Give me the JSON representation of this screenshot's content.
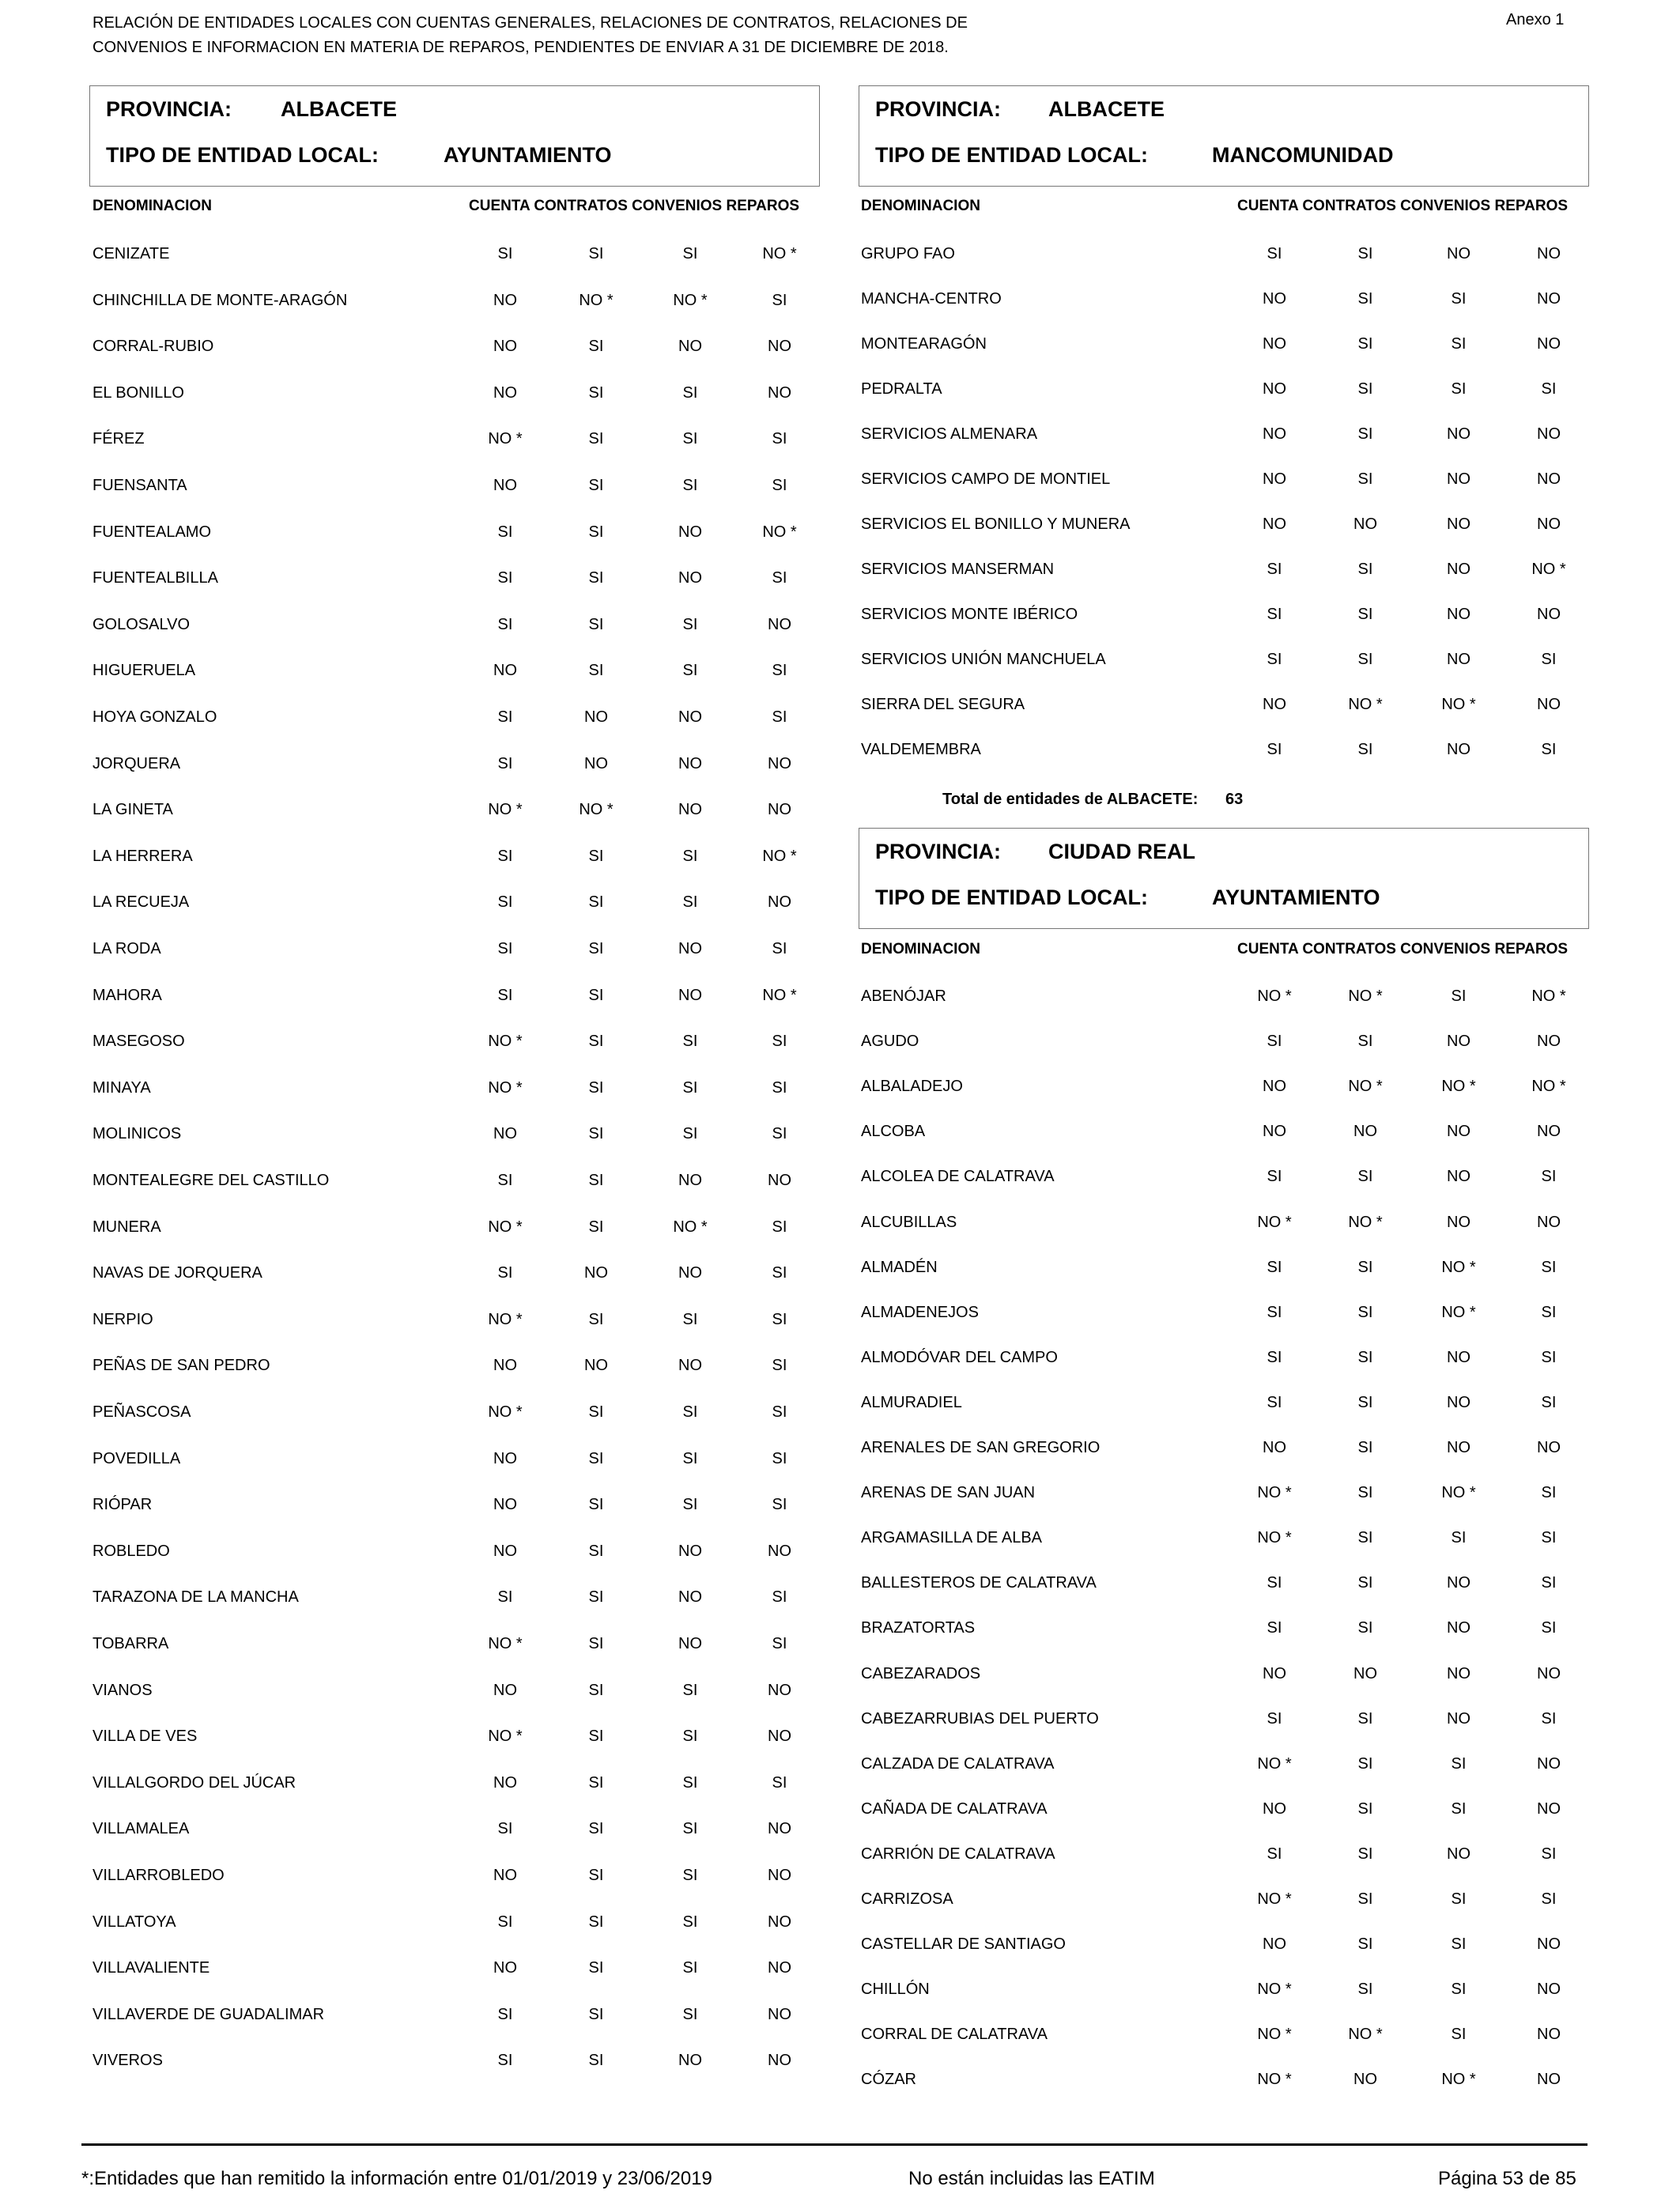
{
  "header": {
    "title_line1": "RELACIÓN DE ENTIDADES LOCALES CON CUENTAS GENERALES, RELACIONES DE CONTRATOS, RELACIONES DE",
    "title_line2": "CONVENIOS E INFORMACION EN MATERIA DE REPAROS, PENDIENTES DE ENVIAR A 31 DE DICIEMBRE DE 2018.",
    "annex": "Anexo 1"
  },
  "labels": {
    "provincia": "PROVINCIA:",
    "tipo": "TIPO DE ENTIDAD LOCAL:",
    "denominacion": "DENOMINACION",
    "columns": "CUENTA CONTRATOS CONVENIOS REPAROS"
  },
  "sections": [
    {
      "provincia": "ALBACETE",
      "tipo": "AYUNTAMIENTO",
      "rows": [
        [
          "CENIZATE",
          "SI",
          "SI",
          "SI",
          "NO *"
        ],
        [
          "CHINCHILLA DE MONTE-ARAGÓN",
          "NO",
          "NO *",
          "NO *",
          "SI"
        ],
        [
          "CORRAL-RUBIO",
          "NO",
          "SI",
          "NO",
          "NO"
        ],
        [
          "EL BONILLO",
          "NO",
          "SI",
          "SI",
          "NO"
        ],
        [
          "FÉREZ",
          "NO *",
          "SI",
          "SI",
          "SI"
        ],
        [
          "FUENSANTA",
          "NO",
          "SI",
          "SI",
          "SI"
        ],
        [
          "FUENTEALAMO",
          "SI",
          "SI",
          "NO",
          "NO *"
        ],
        [
          "FUENTEALBILLA",
          "SI",
          "SI",
          "NO",
          "SI"
        ],
        [
          "GOLOSALVO",
          "SI",
          "SI",
          "SI",
          "NO"
        ],
        [
          "HIGUERUELA",
          "NO",
          "SI",
          "SI",
          "SI"
        ],
        [
          "HOYA GONZALO",
          "SI",
          "NO",
          "NO",
          "SI"
        ],
        [
          "JORQUERA",
          "SI",
          "NO",
          "NO",
          "NO"
        ],
        [
          "LA GINETA",
          "NO *",
          "NO *",
          "NO",
          "NO"
        ],
        [
          "LA HERRERA",
          "SI",
          "SI",
          "SI",
          "NO *"
        ],
        [
          "LA RECUEJA",
          "SI",
          "SI",
          "SI",
          "NO"
        ],
        [
          "LA RODA",
          "SI",
          "SI",
          "NO",
          "SI"
        ],
        [
          "MAHORA",
          "SI",
          "SI",
          "NO",
          "NO *"
        ],
        [
          "MASEGOSO",
          "NO *",
          "SI",
          "SI",
          "SI"
        ],
        [
          "MINAYA",
          "NO *",
          "SI",
          "SI",
          "SI"
        ],
        [
          "MOLINICOS",
          "NO",
          "SI",
          "SI",
          "SI"
        ],
        [
          "MONTEALEGRE DEL CASTILLO",
          "SI",
          "SI",
          "NO",
          "NO"
        ],
        [
          "MUNERA",
          "NO *",
          "SI",
          "NO *",
          "SI"
        ],
        [
          "NAVAS DE JORQUERA",
          "SI",
          "NO",
          "NO",
          "SI"
        ],
        [
          "NERPIO",
          "NO *",
          "SI",
          "SI",
          "SI"
        ],
        [
          "PEÑAS DE SAN PEDRO",
          "NO",
          "NO",
          "NO",
          "SI"
        ],
        [
          "PEÑASCOSA",
          "NO *",
          "SI",
          "SI",
          "SI"
        ],
        [
          "POVEDILLA",
          "NO",
          "SI",
          "SI",
          "SI"
        ],
        [
          "RIÓPAR",
          "NO",
          "SI",
          "SI",
          "SI"
        ],
        [
          "ROBLEDO",
          "NO",
          "SI",
          "NO",
          "NO"
        ],
        [
          "TARAZONA DE LA MANCHA",
          "SI",
          "SI",
          "NO",
          "SI"
        ],
        [
          "TOBARRA",
          "NO *",
          "SI",
          "NO",
          "SI"
        ],
        [
          "VIANOS",
          "NO",
          "SI",
          "SI",
          "NO"
        ],
        [
          "VILLA DE VES",
          "NO *",
          "SI",
          "SI",
          "NO"
        ],
        [
          "VILLALGORDO DEL JÚCAR",
          "NO",
          "SI",
          "SI",
          "SI"
        ],
        [
          "VILLAMALEA",
          "SI",
          "SI",
          "SI",
          "NO"
        ],
        [
          "VILLARROBLEDO",
          "NO",
          "SI",
          "SI",
          "NO"
        ],
        [
          "VILLATOYA",
          "SI",
          "SI",
          "SI",
          "NO"
        ],
        [
          "VILLAVALIENTE",
          "NO",
          "SI",
          "SI",
          "NO"
        ],
        [
          "VILLAVERDE DE GUADALIMAR",
          "SI",
          "SI",
          "SI",
          "NO"
        ],
        [
          "VIVEROS",
          "SI",
          "SI",
          "NO",
          "NO"
        ]
      ]
    },
    {
      "provincia": "ALBACETE",
      "tipo": "MANCOMUNIDAD",
      "rows": [
        [
          "GRUPO FAO",
          "SI",
          "SI",
          "NO",
          "NO"
        ],
        [
          "MANCHA-CENTRO",
          "NO",
          "SI",
          "SI",
          "NO"
        ],
        [
          "MONTEARAGÓN",
          "NO",
          "SI",
          "SI",
          "NO"
        ],
        [
          "PEDRALTA",
          "NO",
          "SI",
          "SI",
          "SI"
        ],
        [
          "SERVICIOS ALMENARA",
          "NO",
          "SI",
          "NO",
          "NO"
        ],
        [
          "SERVICIOS CAMPO DE MONTIEL",
          "NO",
          "SI",
          "NO",
          "NO"
        ],
        [
          "SERVICIOS EL BONILLO Y MUNERA",
          "NO",
          "NO",
          "NO",
          "NO"
        ],
        [
          "SERVICIOS MANSERMAN",
          "SI",
          "SI",
          "NO",
          "NO *"
        ],
        [
          "SERVICIOS MONTE IBÉRICO",
          "SI",
          "SI",
          "NO",
          "NO"
        ],
        [
          "SERVICIOS UNIÓN MANCHUELA",
          "SI",
          "SI",
          "NO",
          "SI"
        ],
        [
          "SIERRA DEL SEGURA",
          "NO",
          "NO *",
          "NO *",
          "NO"
        ],
        [
          "VALDEMEMBRA",
          "SI",
          "SI",
          "NO",
          "SI"
        ]
      ],
      "total_label": "Total de entidades de ALBACETE:",
      "total_value": "63"
    },
    {
      "provincia": "CIUDAD REAL",
      "tipo": "AYUNTAMIENTO",
      "rows": [
        [
          "ABENÓJAR",
          "NO *",
          "NO *",
          "SI",
          "NO *"
        ],
        [
          "AGUDO",
          "SI",
          "SI",
          "NO",
          "NO"
        ],
        [
          "ALBALADEJO",
          "NO",
          "NO *",
          "NO *",
          "NO *"
        ],
        [
          "ALCOBA",
          "NO",
          "NO",
          "NO",
          "NO"
        ],
        [
          "ALCOLEA DE CALATRAVA",
          "SI",
          "SI",
          "NO",
          "SI"
        ],
        [
          "ALCUBILLAS",
          "NO *",
          "NO *",
          "NO",
          "NO"
        ],
        [
          "ALMADÉN",
          "SI",
          "SI",
          "NO *",
          "SI"
        ],
        [
          "ALMADENEJOS",
          "SI",
          "SI",
          "NO *",
          "SI"
        ],
        [
          "ALMODÓVAR DEL CAMPO",
          "SI",
          "SI",
          "NO",
          "SI"
        ],
        [
          "ALMURADIEL",
          "SI",
          "SI",
          "NO",
          "SI"
        ],
        [
          "ARENALES DE SAN GREGORIO",
          "NO",
          "SI",
          "NO",
          "NO"
        ],
        [
          "ARENAS DE SAN JUAN",
          "NO *",
          "SI",
          "NO *",
          "SI"
        ],
        [
          "ARGAMASILLA DE ALBA",
          "NO *",
          "SI",
          "SI",
          "SI"
        ],
        [
          "BALLESTEROS DE CALATRAVA",
          "SI",
          "SI",
          "NO",
          "SI"
        ],
        [
          "BRAZATORTAS",
          "SI",
          "SI",
          "NO",
          "SI"
        ],
        [
          "CABEZARADOS",
          "NO",
          "NO",
          "NO",
          "NO"
        ],
        [
          "CABEZARRUBIAS DEL PUERTO",
          "SI",
          "SI",
          "NO",
          "SI"
        ],
        [
          "CALZADA DE CALATRAVA",
          "NO *",
          "SI",
          "SI",
          "NO"
        ],
        [
          "CAÑADA DE CALATRAVA",
          "NO",
          "SI",
          "SI",
          "NO"
        ],
        [
          "CARRIÓN DE CALATRAVA",
          "SI",
          "SI",
          "NO",
          "SI"
        ],
        [
          "CARRIZOSA",
          "NO *",
          "SI",
          "SI",
          "SI"
        ],
        [
          "CASTELLAR DE SANTIAGO",
          "NO",
          "SI",
          "SI",
          "NO"
        ],
        [
          "CHILLÓN",
          "NO *",
          "SI",
          "SI",
          "NO"
        ],
        [
          "CORRAL DE CALATRAVA",
          "NO *",
          "NO *",
          "SI",
          "NO"
        ],
        [
          "CÓZAR",
          "NO *",
          "NO",
          "NO *",
          "NO"
        ]
      ]
    }
  ],
  "footer": {
    "footnote": "*:Entidades que han remitido la información entre 01/01/2019 y 23/06/2019",
    "note": "No están incluidas las EATIM",
    "page": "Página 53 de 85"
  }
}
